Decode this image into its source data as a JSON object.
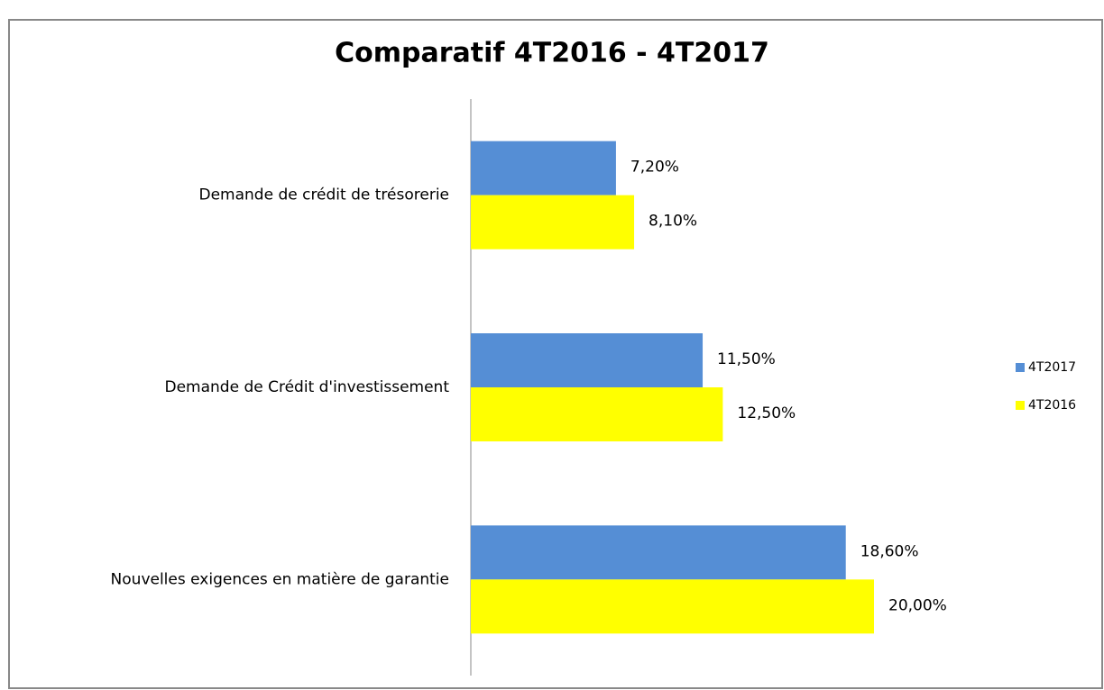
{
  "chart_data": {
    "type": "bar",
    "orientation": "horizontal",
    "title": "Comparatif 4T2016 - 4T2017",
    "categories": [
      "Demande de crédit de trésorerie",
      "Demande de Crédit d'investissement",
      "Nouvelles exigences en matière de garantie"
    ],
    "series": [
      {
        "name": "4T2017",
        "color": "#558ed5",
        "values": [
          7.2,
          11.5,
          18.6
        ],
        "value_labels": [
          "7,20%",
          "11,50%",
          "18,60%"
        ]
      },
      {
        "name": "4T2016",
        "color": "#ffff00",
        "values": [
          8.1,
          12.5,
          20.0
        ],
        "value_labels": [
          "8,10%",
          "12,50%",
          "20,00%"
        ]
      }
    ],
    "legend": "right"
  }
}
